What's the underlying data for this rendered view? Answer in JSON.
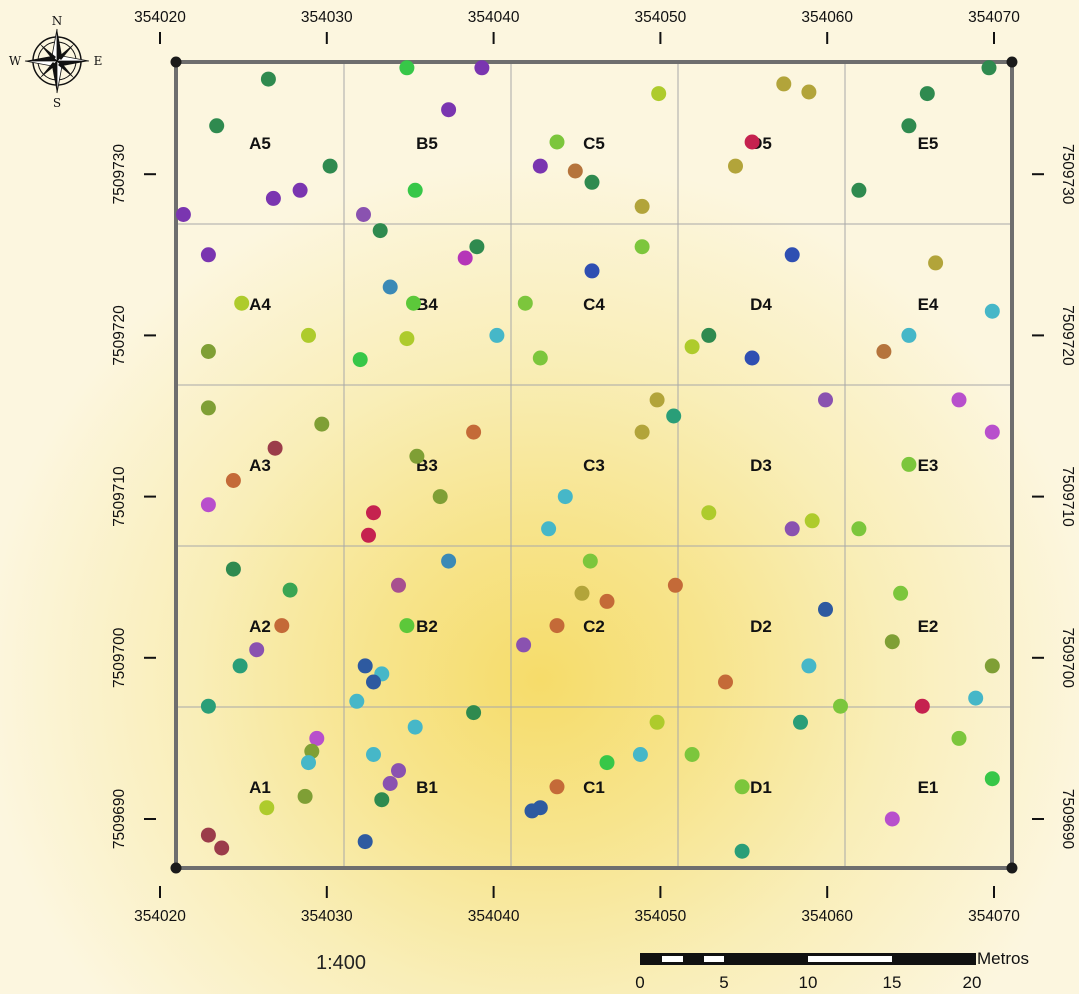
{
  "map": {
    "scale_ratio": "1:400",
    "x_ticks": [
      "354020",
      "354030",
      "354040",
      "354050",
      "354060",
      "354070"
    ],
    "y_ticks": [
      "7509690",
      "7509700",
      "7509710",
      "7509720",
      "7509730"
    ],
    "grid_cells": [
      [
        "A5",
        "B5",
        "C5",
        "D5",
        "E5"
      ],
      [
        "A4",
        "B4",
        "C4",
        "D4",
        "E4"
      ],
      [
        "A3",
        "B3",
        "C3",
        "D3",
        "E3"
      ],
      [
        "A2",
        "B2",
        "C2",
        "D2",
        "E2"
      ],
      [
        "A1",
        "B1",
        "C1",
        "D1",
        "E1"
      ]
    ],
    "compass": {
      "north": "N",
      "south": "S",
      "east": "E",
      "west": "W"
    },
    "scale_bar": {
      "unit_label": "Metros",
      "labels": [
        "0",
        "5",
        "10",
        "15",
        "20"
      ]
    },
    "point_colors": {
      "dark-green": "#2f8a4f",
      "purple": "#7a35b0",
      "light-green": "#7cc63c",
      "bright-green": "#37c748",
      "olive": "#b2a43a",
      "yellow-green": "#aecb2c",
      "crimson": "#c5224f",
      "magenta": "#b535b8",
      "blue": "#2f4fb2",
      "steel-blue": "#3b8ab6",
      "cyan": "#46b7c8",
      "brown": "#b5743c",
      "orange-brown": "#c46a38",
      "olive-green": "#7f9f35",
      "maroon": "#9b3c4a",
      "green": "#3aa553",
      "violet": "#8a52b0",
      "red": "#d43c44",
      "teal": "#2a9e78",
      "navy": "#2e5aa0",
      "lime": "#5cc83a",
      "grass": "#4fb048",
      "bright-magenta": "#b84fcc",
      "plum": "#a84f8f"
    },
    "points": [
      {
        "x": 354026.5,
        "y": 7509735.9,
        "c": "dark-green"
      },
      {
        "x": 354023.4,
        "y": 7509733.0,
        "c": "dark-green"
      },
      {
        "x": 354030.2,
        "y": 7509730.5,
        "c": "dark-green"
      },
      {
        "x": 354028.4,
        "y": 7509729.0,
        "c": "purple"
      },
      {
        "x": 354026.8,
        "y": 7509728.5,
        "c": "purple"
      },
      {
        "x": 354021.4,
        "y": 7509727.5,
        "c": "purple"
      },
      {
        "x": 354022.9,
        "y": 7509725.0,
        "c": "purple"
      },
      {
        "x": 354024.9,
        "y": 7509722.0,
        "c": "yellow-green"
      },
      {
        "x": 354028.9,
        "y": 7509720.0,
        "c": "yellow-green"
      },
      {
        "x": 354022.9,
        "y": 7509719.0,
        "c": "olive-green"
      },
      {
        "x": 354034.8,
        "y": 7509736.6,
        "c": "bright-green"
      },
      {
        "x": 354039.3,
        "y": 7509736.6,
        "c": "purple"
      },
      {
        "x": 354037.3,
        "y": 7509734.0,
        "c": "purple"
      },
      {
        "x": 354035.3,
        "y": 7509729.0,
        "c": "bright-green"
      },
      {
        "x": 354032.2,
        "y": 7509727.5,
        "c": "violet"
      },
      {
        "x": 354033.2,
        "y": 7509726.5,
        "c": "dark-green"
      },
      {
        "x": 354039.0,
        "y": 7509725.5,
        "c": "dark-green"
      },
      {
        "x": 354038.3,
        "y": 7509724.8,
        "c": "magenta"
      },
      {
        "x": 354033.8,
        "y": 7509723.0,
        "c": "steel-blue"
      },
      {
        "x": 354035.2,
        "y": 7509722.0,
        "c": "lime"
      },
      {
        "x": 354034.8,
        "y": 7509719.8,
        "c": "yellow-green"
      },
      {
        "x": 354032.0,
        "y": 7509718.5,
        "c": "bright-green"
      },
      {
        "x": 354040.2,
        "y": 7509720.0,
        "c": "cyan"
      },
      {
        "x": 354049.9,
        "y": 7509735.0,
        "c": "yellow-green"
      },
      {
        "x": 354043.8,
        "y": 7509732.0,
        "c": "light-green"
      },
      {
        "x": 354042.8,
        "y": 7509730.5,
        "c": "purple"
      },
      {
        "x": 354044.9,
        "y": 7509730.2,
        "c": "brown"
      },
      {
        "x": 354045.9,
        "y": 7509729.5,
        "c": "dark-green"
      },
      {
        "x": 354048.9,
        "y": 7509728.0,
        "c": "olive"
      },
      {
        "x": 354048.9,
        "y": 7509725.5,
        "c": "light-green"
      },
      {
        "x": 354045.9,
        "y": 7509724.0,
        "c": "blue"
      },
      {
        "x": 354041.9,
        "y": 7509722.0,
        "c": "light-green"
      },
      {
        "x": 354042.8,
        "y": 7509718.6,
        "c": "light-green"
      },
      {
        "x": 354057.4,
        "y": 7509735.6,
        "c": "olive"
      },
      {
        "x": 354058.9,
        "y": 7509735.1,
        "c": "olive"
      },
      {
        "x": 354055.5,
        "y": 7509732.0,
        "c": "crimson"
      },
      {
        "x": 354054.5,
        "y": 7509730.5,
        "c": "olive"
      },
      {
        "x": 354057.9,
        "y": 7509725.0,
        "c": "blue"
      },
      {
        "x": 354052.9,
        "y": 7509720.0,
        "c": "dark-green"
      },
      {
        "x": 354051.9,
        "y": 7509719.3,
        "c": "yellow-green"
      },
      {
        "x": 354055.5,
        "y": 7509718.6,
        "c": "blue"
      },
      {
        "x": 354069.7,
        "y": 7509736.6,
        "c": "dark-green"
      },
      {
        "x": 354066.0,
        "y": 7509735.0,
        "c": "dark-green"
      },
      {
        "x": 354064.9,
        "y": 7509733.0,
        "c": "dark-green"
      },
      {
        "x": 354061.9,
        "y": 7509729.0,
        "c": "dark-green"
      },
      {
        "x": 354066.5,
        "y": 7509724.5,
        "c": "olive"
      },
      {
        "x": 354069.9,
        "y": 7509721.5,
        "c": "cyan"
      },
      {
        "x": 354064.9,
        "y": 7509720.0,
        "c": "cyan"
      },
      {
        "x": 354063.4,
        "y": 7509719.0,
        "c": "brown"
      },
      {
        "x": 354022.9,
        "y": 7509715.5,
        "c": "olive-green"
      },
      {
        "x": 354029.7,
        "y": 7509714.5,
        "c": "olive-green"
      },
      {
        "x": 354026.9,
        "y": 7509713.0,
        "c": "maroon"
      },
      {
        "x": 354024.4,
        "y": 7509711.0,
        "c": "orange-brown"
      },
      {
        "x": 354022.9,
        "y": 7509709.5,
        "c": "bright-magenta"
      },
      {
        "x": 354038.8,
        "y": 7509714.0,
        "c": "orange-brown"
      },
      {
        "x": 354035.4,
        "y": 7509712.5,
        "c": "olive-green"
      },
      {
        "x": 354036.8,
        "y": 7509710.0,
        "c": "olive-green"
      },
      {
        "x": 354032.8,
        "y": 7509709.0,
        "c": "crimson"
      },
      {
        "x": 354032.5,
        "y": 7509707.6,
        "c": "crimson"
      },
      {
        "x": 354049.8,
        "y": 7509716.0,
        "c": "olive"
      },
      {
        "x": 354050.8,
        "y": 7509715.0,
        "c": "teal"
      },
      {
        "x": 354048.9,
        "y": 7509714.0,
        "c": "olive"
      },
      {
        "x": 354044.3,
        "y": 7509710.0,
        "c": "cyan"
      },
      {
        "x": 354043.3,
        "y": 7509708.0,
        "c": "cyan"
      },
      {
        "x": 354059.9,
        "y": 7509716.0,
        "c": "violet"
      },
      {
        "x": 354052.9,
        "y": 7509709.0,
        "c": "yellow-green"
      },
      {
        "x": 354059.1,
        "y": 7509708.5,
        "c": "yellow-green"
      },
      {
        "x": 354057.9,
        "y": 7509708.0,
        "c": "violet"
      },
      {
        "x": 354067.9,
        "y": 7509716.0,
        "c": "bright-magenta"
      },
      {
        "x": 354069.9,
        "y": 7509714.0,
        "c": "bright-magenta"
      },
      {
        "x": 354064.9,
        "y": 7509712.0,
        "c": "light-green"
      },
      {
        "x": 354061.9,
        "y": 7509708.0,
        "c": "light-green"
      },
      {
        "x": 354024.4,
        "y": 7509705.5,
        "c": "dark-green"
      },
      {
        "x": 354027.8,
        "y": 7509704.2,
        "c": "green"
      },
      {
        "x": 354027.3,
        "y": 7509702.0,
        "c": "orange-brown"
      },
      {
        "x": 354025.8,
        "y": 7509700.5,
        "c": "violet"
      },
      {
        "x": 354024.8,
        "y": 7509699.5,
        "c": "teal"
      },
      {
        "x": 354022.9,
        "y": 7509697.0,
        "c": "teal"
      },
      {
        "x": 354037.3,
        "y": 7509706.0,
        "c": "steel-blue"
      },
      {
        "x": 354034.3,
        "y": 7509704.5,
        "c": "plum"
      },
      {
        "x": 354034.8,
        "y": 7509702.0,
        "c": "lime"
      },
      {
        "x": 354032.3,
        "y": 7509699.5,
        "c": "navy"
      },
      {
        "x": 354033.3,
        "y": 7509699.0,
        "c": "cyan"
      },
      {
        "x": 354032.8,
        "y": 7509698.5,
        "c": "navy"
      },
      {
        "x": 354031.8,
        "y": 7509697.3,
        "c": "cyan"
      },
      {
        "x": 354038.8,
        "y": 7509696.6,
        "c": "dark-green"
      },
      {
        "x": 354045.8,
        "y": 7509706.0,
        "c": "light-green"
      },
      {
        "x": 354045.3,
        "y": 7509704.0,
        "c": "olive"
      },
      {
        "x": 354046.8,
        "y": 7509703.5,
        "c": "orange-brown"
      },
      {
        "x": 354043.8,
        "y": 7509702.0,
        "c": "orange-brown"
      },
      {
        "x": 354041.8,
        "y": 7509700.8,
        "c": "violet"
      },
      {
        "x": 354050.9,
        "y": 7509704.5,
        "c": "orange-brown"
      },
      {
        "x": 354059.9,
        "y": 7509703.0,
        "c": "navy"
      },
      {
        "x": 354058.9,
        "y": 7509699.5,
        "c": "cyan"
      },
      {
        "x": 354053.9,
        "y": 7509698.5,
        "c": "orange-brown"
      },
      {
        "x": 354064.4,
        "y": 7509704.0,
        "c": "light-green"
      },
      {
        "x": 354063.9,
        "y": 7509701.0,
        "c": "olive-green"
      },
      {
        "x": 354069.9,
        "y": 7509699.5,
        "c": "olive-green"
      },
      {
        "x": 354068.9,
        "y": 7509697.5,
        "c": "cyan"
      },
      {
        "x": 354029.4,
        "y": 7509695.0,
        "c": "bright-magenta"
      },
      {
        "x": 354029.1,
        "y": 7509694.2,
        "c": "olive-green"
      },
      {
        "x": 354028.9,
        "y": 7509693.5,
        "c": "cyan"
      },
      {
        "x": 354026.4,
        "y": 7509690.7,
        "c": "yellow-green"
      },
      {
        "x": 354028.7,
        "y": 7509691.4,
        "c": "olive-green"
      },
      {
        "x": 354022.9,
        "y": 7509689.0,
        "c": "maroon"
      },
      {
        "x": 354023.7,
        "y": 7509688.2,
        "c": "maroon"
      },
      {
        "x": 354035.3,
        "y": 7509695.7,
        "c": "cyan"
      },
      {
        "x": 354032.8,
        "y": 7509694.0,
        "c": "cyan"
      },
      {
        "x": 354034.3,
        "y": 7509693.0,
        "c": "violet"
      },
      {
        "x": 354033.8,
        "y": 7509692.2,
        "c": "violet"
      },
      {
        "x": 354033.3,
        "y": 7509691.2,
        "c": "dark-green"
      },
      {
        "x": 354032.3,
        "y": 7509688.6,
        "c": "navy"
      },
      {
        "x": 354049.8,
        "y": 7509696.0,
        "c": "yellow-green"
      },
      {
        "x": 354048.8,
        "y": 7509694.0,
        "c": "cyan"
      },
      {
        "x": 354046.8,
        "y": 7509693.5,
        "c": "bright-green"
      },
      {
        "x": 354043.8,
        "y": 7509692.0,
        "c": "orange-brown"
      },
      {
        "x": 354042.8,
        "y": 7509690.7,
        "c": "navy"
      },
      {
        "x": 354042.3,
        "y": 7509690.5,
        "c": "navy"
      },
      {
        "x": 354060.8,
        "y": 7509697.0,
        "c": "light-green"
      },
      {
        "x": 354058.4,
        "y": 7509696.0,
        "c": "teal"
      },
      {
        "x": 354051.9,
        "y": 7509694.0,
        "c": "light-green"
      },
      {
        "x": 354054.9,
        "y": 7509692.0,
        "c": "light-green"
      },
      {
        "x": 354054.9,
        "y": 7509688.0,
        "c": "teal"
      },
      {
        "x": 354065.7,
        "y": 7509697.0,
        "c": "crimson"
      },
      {
        "x": 354067.9,
        "y": 7509695.0,
        "c": "light-green"
      },
      {
        "x": 354069.9,
        "y": 7509692.5,
        "c": "bright-green"
      },
      {
        "x": 354063.9,
        "y": 7509690.0,
        "c": "bright-magenta"
      }
    ]
  }
}
